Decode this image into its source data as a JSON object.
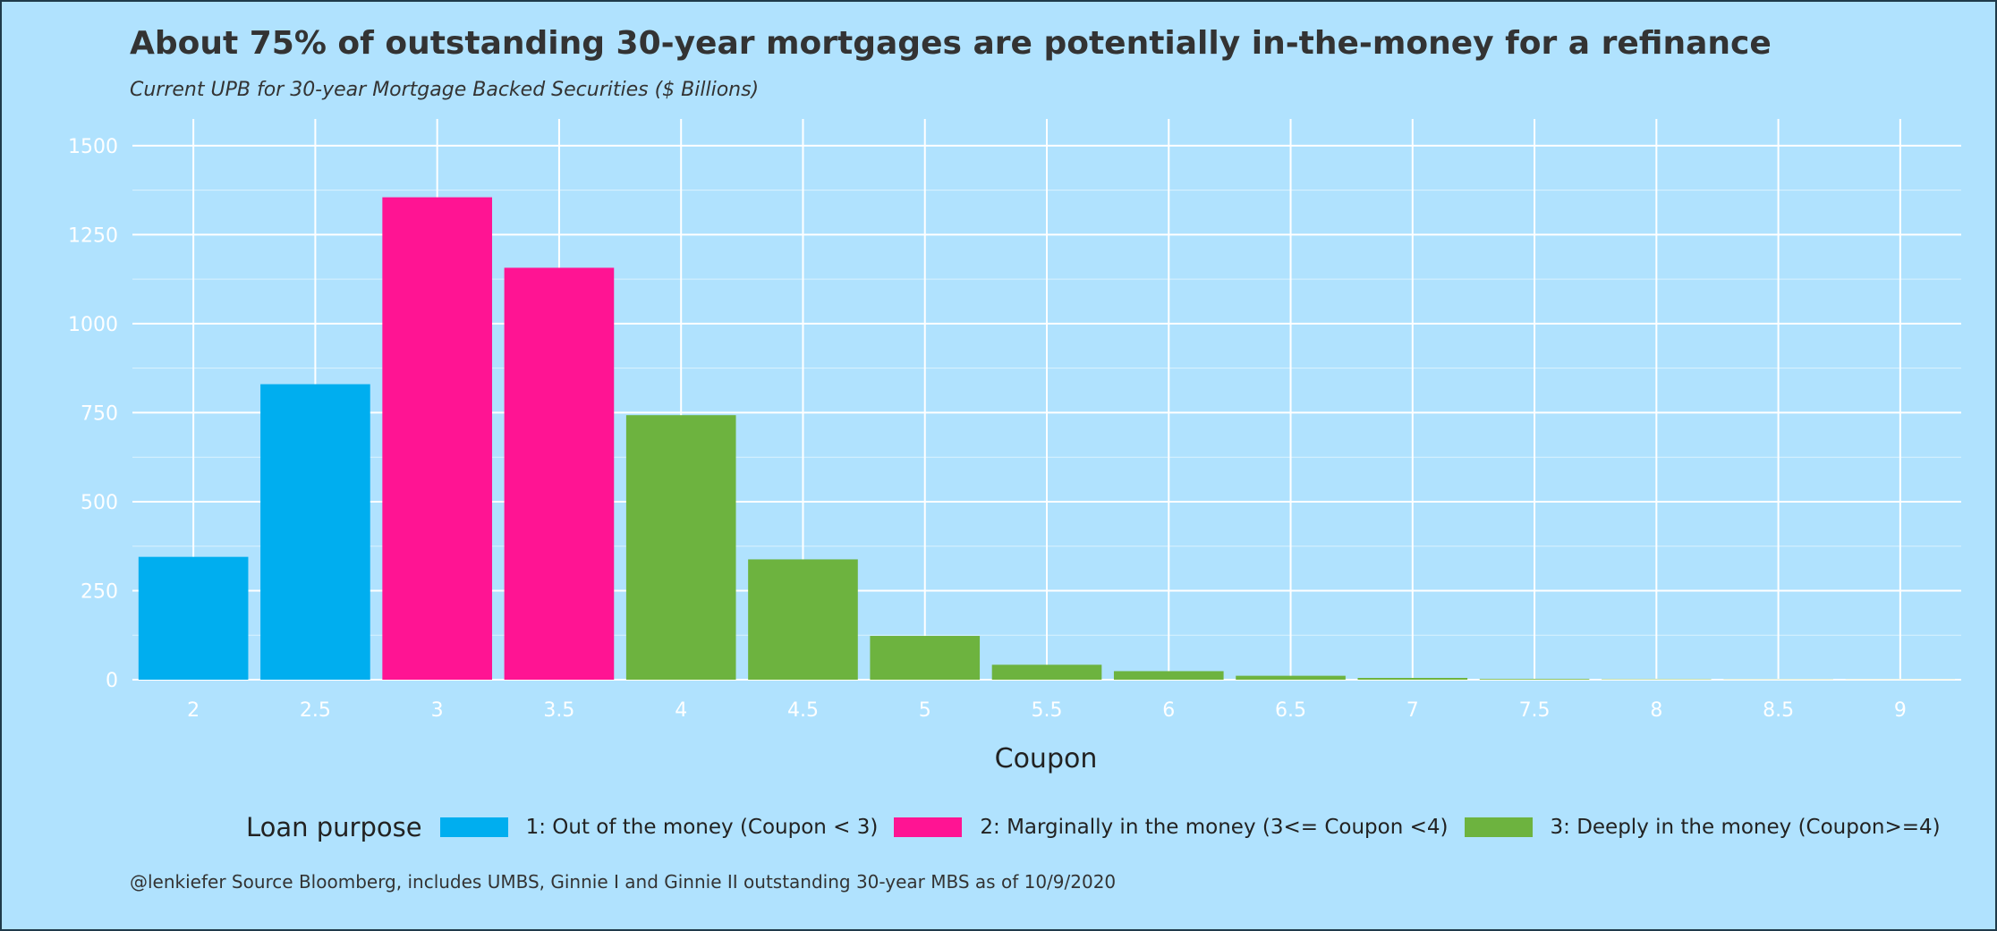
{
  "chart_data": {
    "type": "bar",
    "title": "About 75% of outstanding 30-year mortgages are potentially in-the-money for a refinance",
    "subtitle": "Current UPB for 30-year Mortgage Backed Securities ($ Billions)",
    "xlabel": "Coupon",
    "ylabel": "",
    "caption": "@lenkiefer Source Bloomberg, includes UMBS, Ginnie I and Ginnie II outstanding 30-year MBS as of 10/9/2020",
    "categories": [
      "2",
      "2.5",
      "3",
      "3.5",
      "4",
      "4.5",
      "5",
      "5.5",
      "6",
      "6.5",
      "7",
      "7.5",
      "8",
      "8.5",
      "9"
    ],
    "x_ticks": [
      "2",
      "2.5",
      "3",
      "3.5",
      "4",
      "4.5",
      "5",
      "5.5",
      "6",
      "6.5",
      "7",
      "7.5",
      "8",
      "8.5",
      "9"
    ],
    "y_ticks": [
      0,
      250,
      500,
      750,
      1000,
      1250,
      1500
    ],
    "ylim": [
      0,
      1575
    ],
    "grid": true,
    "legend_position": "bottom",
    "legend_title": "Loan purpose",
    "series": [
      {
        "name": "1: Out of the money (Coupon < 3)",
        "color": "#00aeef",
        "values": [
          345,
          830,
          null,
          null,
          null,
          null,
          null,
          null,
          null,
          null,
          null,
          null,
          null,
          null,
          null
        ]
      },
      {
        "name": "2: Marginally in the money (3<= Coupon <4)",
        "color": "#ff1493",
        "values": [
          null,
          null,
          1355,
          1157,
          null,
          null,
          null,
          null,
          null,
          null,
          null,
          null,
          null,
          null,
          null
        ]
      },
      {
        "name": "3: Deeply in the money (Coupon>=4)",
        "color": "#6db33f",
        "values": [
          null,
          null,
          null,
          null,
          743,
          338,
          123,
          42,
          24,
          11,
          5,
          2,
          1,
          0.5,
          0.3
        ]
      }
    ]
  }
}
